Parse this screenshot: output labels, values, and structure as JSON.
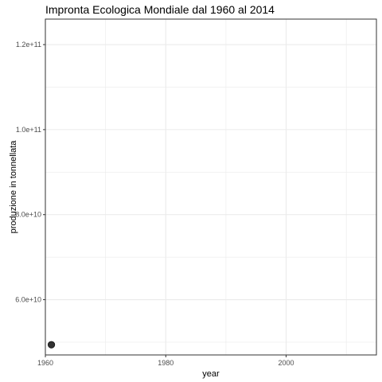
{
  "chart_data": {
    "type": "scatter",
    "title": "Impronta Ecologica Mondiale dal 1960 al 2014",
    "xlabel": "year",
    "ylabel": "produzione in tonnellata",
    "xlim": [
      1960,
      2015
    ],
    "ylim": [
      47000000000,
      126000000000
    ],
    "x_ticks": [
      1960,
      1980,
      2000
    ],
    "x_tick_labels": [
      "1960",
      "1980",
      "2000"
    ],
    "y_ticks": [
      60000000000,
      80000000000,
      100000000000,
      120000000000
    ],
    "y_tick_labels": [
      "6.0e+10",
      "8.0e+10",
      "1.0e+11",
      "1.2e+11"
    ],
    "grid": true,
    "legend": "none",
    "point_color": "#333333",
    "grid_color": "#ebebeb",
    "points": [
      {
        "x": 1961,
        "y": 49400000000
      }
    ]
  }
}
